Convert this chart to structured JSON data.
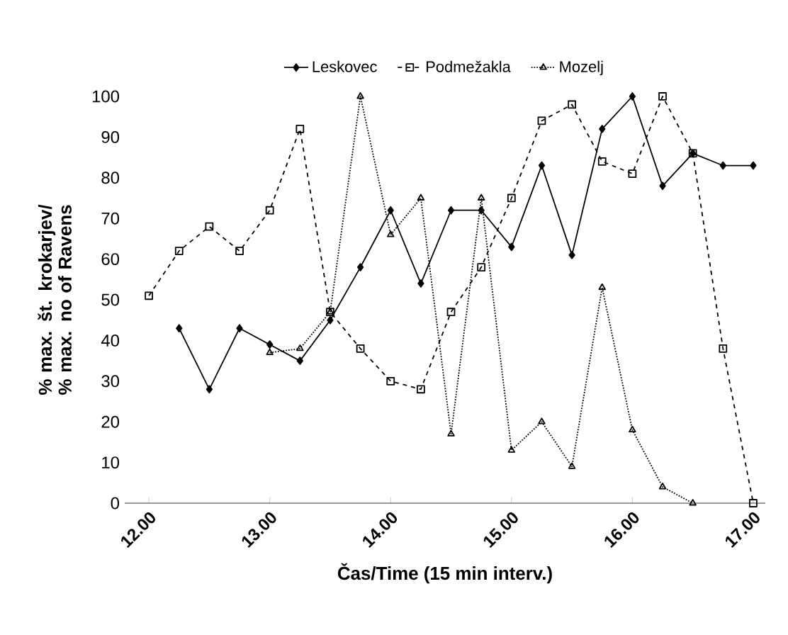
{
  "chart_data": {
    "type": "line",
    "xlabel": "Čas/Time (15 min interv.)",
    "ylabel": "% max. št. krokarjev/ % max. no of Ravens",
    "x": [
      12,
      12.25,
      12.5,
      12.75,
      13,
      13.25,
      13.5,
      13.75,
      14,
      14.25,
      14.5,
      14.75,
      15,
      15.25,
      15.5,
      15.75,
      16,
      16.25,
      16.5,
      16.75,
      17
    ],
    "series": [
      {
        "name": "Leskovec",
        "color": "#000000",
        "marker": "diamond",
        "line_style": "solid",
        "values": [
          null,
          43,
          28,
          43,
          39,
          35,
          45,
          58,
          72,
          54,
          72,
          72,
          63,
          83,
          61,
          92,
          100,
          78,
          86,
          83,
          83
        ]
      },
      {
        "name": "Podmežakla",
        "color": "#000000",
        "marker": "square",
        "line_style": "dashed",
        "values": [
          51,
          62,
          68,
          62,
          72,
          92,
          47,
          38,
          30,
          28,
          47,
          58,
          75,
          94,
          98,
          84,
          81,
          100,
          86,
          38,
          0
        ]
      },
      {
        "name": "Mozelj",
        "color": "#000000",
        "marker": "triangle",
        "line_style": "dotted",
        "values": [
          null,
          null,
          null,
          null,
          37,
          38,
          47,
          100,
          66,
          75,
          17,
          75,
          13,
          20,
          9,
          53,
          18,
          4,
          0,
          null,
          null
        ]
      }
    ],
    "xlim": [
      11.8,
      17.1
    ],
    "ylim": [
      0,
      100
    ],
    "xticks": [
      {
        "value": 12,
        "label": "12.00"
      },
      {
        "value": 13,
        "label": "13.00"
      },
      {
        "value": 14,
        "label": "14.00"
      },
      {
        "value": 15,
        "label": "15.00"
      },
      {
        "value": 16,
        "label": "16.00"
      },
      {
        "value": 17,
        "label": "17.00"
      }
    ],
    "yticks": [
      0,
      10,
      20,
      30,
      40,
      50,
      60,
      70,
      80,
      90,
      100
    ],
    "legend": "top",
    "grid": false
  }
}
